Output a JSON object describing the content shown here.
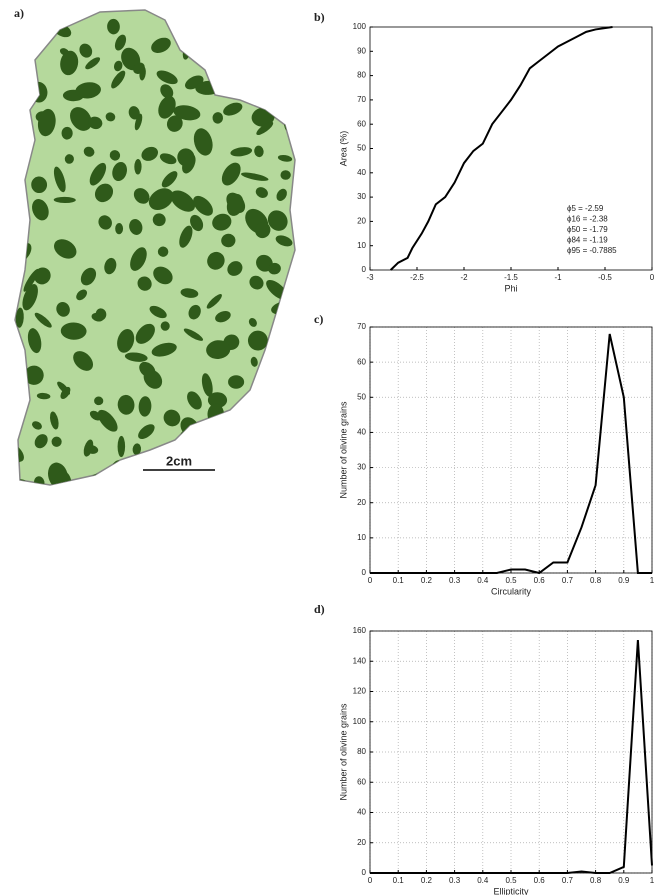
{
  "figure": {
    "panel_labels": [
      "a)",
      "b)",
      "c)",
      "d)"
    ],
    "scale_bar": "2cm"
  },
  "chart_data": [
    {
      "type": "line",
      "xlabel": "Phi",
      "ylabel": "Area (%)",
      "grid": false,
      "color": "#000000",
      "x": [
        -2.78,
        -2.7,
        -2.6,
        -2.55,
        -2.45,
        -2.38,
        -2.3,
        -2.2,
        -2.1,
        -2.0,
        -1.9,
        -1.8,
        -1.7,
        -1.6,
        -1.5,
        -1.4,
        -1.3,
        -1.2,
        -1.1,
        -1.0,
        -0.9,
        -0.8,
        -0.7,
        -0.6,
        -0.42
      ],
      "values": [
        0,
        3,
        5,
        9,
        15,
        20,
        27,
        30,
        36,
        44,
        49,
        52,
        60,
        65,
        70,
        76,
        83,
        86,
        89,
        92,
        94,
        96,
        98,
        99,
        100
      ],
      "xlim": [
        -3,
        0
      ],
      "xticks": [
        -3,
        -2.5,
        -2,
        -1.5,
        -1,
        -0.5,
        0
      ],
      "ylim": [
        0,
        100
      ],
      "yticks": [
        0,
        10,
        20,
        30,
        40,
        50,
        60,
        70,
        80,
        90,
        100
      ],
      "annotations": [
        "ϕ5 = -2.59",
        "ϕ16 = -2.38",
        "ϕ50 = -1.79",
        "ϕ84 = -1.19",
        "ϕ95 = -0.7885"
      ]
    },
    {
      "type": "line",
      "xlabel": "Circularity",
      "ylabel": "Number of olivine grains",
      "grid": true,
      "color": "#000000",
      "x": [
        0,
        0.05,
        0.1,
        0.15,
        0.2,
        0.25,
        0.3,
        0.35,
        0.4,
        0.45,
        0.5,
        0.55,
        0.6,
        0.65,
        0.7,
        0.75,
        0.8,
        0.85,
        0.9,
        0.95,
        1
      ],
      "values": [
        0,
        0,
        0,
        0,
        0,
        0,
        0,
        0,
        0,
        0,
        1,
        1,
        0,
        3,
        3,
        13,
        25,
        68,
        50,
        0,
        0
      ],
      "xlim": [
        0,
        1
      ],
      "xticks": [
        0,
        0.1,
        0.2,
        0.3,
        0.4,
        0.5,
        0.6,
        0.7,
        0.8,
        0.9,
        1
      ],
      "ylim": [
        0,
        70
      ],
      "yticks": [
        0,
        10,
        20,
        30,
        40,
        50,
        60,
        70
      ]
    },
    {
      "type": "line",
      "xlabel": "Ellipticity",
      "ylabel": "Number of olivine grains",
      "grid": true,
      "color": "#000000",
      "x": [
        0,
        0.05,
        0.1,
        0.15,
        0.2,
        0.25,
        0.3,
        0.35,
        0.4,
        0.45,
        0.5,
        0.55,
        0.6,
        0.65,
        0.7,
        0.75,
        0.8,
        0.85,
        0.9,
        0.95,
        1
      ],
      "values": [
        0,
        0,
        0,
        0,
        0,
        0,
        0,
        0,
        0,
        0,
        0,
        0,
        0,
        0,
        0,
        1,
        0,
        0,
        4,
        154,
        5
      ],
      "xlim": [
        0,
        1
      ],
      "xticks": [
        0,
        0.1,
        0.2,
        0.3,
        0.4,
        0.5,
        0.6,
        0.7,
        0.8,
        0.9,
        1
      ],
      "ylim": [
        0,
        160
      ],
      "yticks": [
        0,
        20,
        40,
        60,
        80,
        100,
        120,
        140,
        160
      ]
    }
  ]
}
